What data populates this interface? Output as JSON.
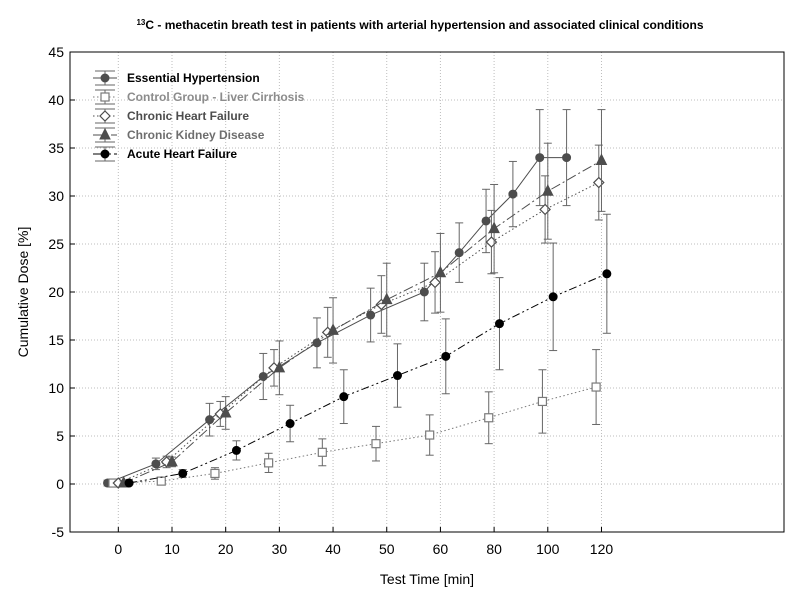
{
  "chart_data": {
    "type": "line",
    "title_sup": "13",
    "title_main": "C - methacetin breath test in patients with arterial hypertension and associated clinical conditions",
    "xlabel": "Test Time [min]",
    "ylabel": "Cumulative Dose [%]",
    "ylim": [
      -5,
      45
    ],
    "yticks": [
      -5,
      0,
      5,
      10,
      15,
      20,
      25,
      30,
      35,
      40,
      45
    ],
    "x_tick_labels": [
      "0",
      "10",
      "20",
      "30",
      "40",
      "50",
      "60",
      "80",
      "100",
      "120"
    ],
    "grid": true,
    "legend_position": "top-left",
    "series": [
      {
        "name": "Essential Hypertension",
        "x": [
          -2,
          7,
          17,
          27,
          37,
          47,
          57,
          67,
          77,
          87,
          97,
          107
        ],
        "y": [
          0.1,
          2.1,
          6.7,
          11.2,
          14.7,
          17.6,
          20.0,
          24.1,
          27.4,
          30.2,
          34.0,
          34.0
        ],
        "err": [
          0.3,
          0.6,
          1.7,
          2.4,
          2.6,
          2.8,
          3.0,
          3.1,
          3.3,
          3.4,
          5.0,
          5.0
        ],
        "marker": "circle-filled",
        "line": "solid",
        "color": "#4d4d4d"
      },
      {
        "name": "Control Group - Liver Cirrhosis",
        "x": [
          -1,
          8,
          18,
          28,
          38,
          48,
          58,
          78,
          98,
          118
        ],
        "y": [
          0.1,
          0.3,
          1.1,
          2.2,
          3.3,
          4.2,
          5.1,
          6.9,
          8.6,
          10.1
        ],
        "err": [
          0.2,
          0.3,
          0.6,
          1.0,
          1.4,
          1.8,
          2.1,
          2.7,
          3.3,
          3.9
        ],
        "marker": "square-open",
        "line": "dotted",
        "color": "#7a7a7a"
      },
      {
        "name": "Chronic Heart Failure",
        "x": [
          0,
          9,
          19,
          29,
          39,
          49,
          59,
          79,
          99,
          119
        ],
        "y": [
          0.1,
          2.3,
          7.3,
          12.1,
          15.8,
          18.7,
          21.0,
          25.2,
          28.6,
          31.4
        ],
        "err": [
          0.2,
          0.6,
          1.3,
          1.9,
          2.6,
          3.0,
          3.2,
          3.3,
          3.5,
          3.9
        ],
        "marker": "diamond-open",
        "line": "dotted",
        "color": "#4d4d4d"
      },
      {
        "name": "Chronic Kidney Disease",
        "x": [
          1,
          10,
          20,
          30,
          40,
          50,
          60,
          80,
          100,
          120
        ],
        "y": [
          0.1,
          2.3,
          7.4,
          12.1,
          16.0,
          19.2,
          22.0,
          26.6,
          30.5,
          33.7
        ],
        "err": [
          0.2,
          0.5,
          1.7,
          2.8,
          3.4,
          3.8,
          4.1,
          4.6,
          5.0,
          5.3
        ],
        "marker": "triangle-filled",
        "line": "dashdot",
        "color": "#4d4d4d"
      },
      {
        "name": "Acute Heart Failure",
        "x": [
          2,
          12,
          22,
          32,
          42,
          52,
          62,
          82,
          102,
          122
        ],
        "y": [
          0.1,
          1.1,
          3.5,
          6.3,
          9.1,
          11.3,
          13.3,
          16.7,
          19.5,
          21.9
        ],
        "err": [
          0.2,
          0.4,
          1.0,
          1.9,
          2.8,
          3.3,
          3.9,
          4.8,
          5.6,
          6.2
        ],
        "marker": "circle-filled",
        "line": "dashdotdot",
        "color": "#000000"
      }
    ]
  },
  "legend_colors": [
    "#000000",
    "#8c8c8c",
    "#4d4d4d",
    "#6e6e6e",
    "#000000"
  ]
}
